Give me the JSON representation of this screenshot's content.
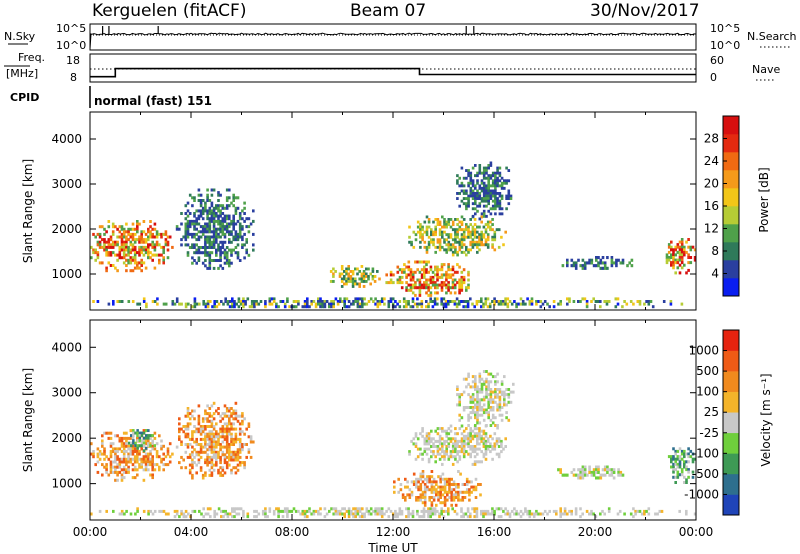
{
  "header": {
    "station": "Kerguelen (fitACF)",
    "beam": "Beam 07",
    "date": "30/Nov/2017"
  },
  "noise_panel": {
    "left_label": "N.Sky",
    "right_label": "N.Search",
    "left_ticks": [
      "10^5",
      "10^0"
    ],
    "right_ticks": [
      "10^5",
      "10^0"
    ],
    "spikes_hours": [
      0.5,
      0.75,
      2.7,
      14.9,
      15.2
    ],
    "line_style_right": "dotted"
  },
  "freq_panel": {
    "left_label": "Freq.",
    "left_unit": "[MHz]",
    "right_label": "Nave",
    "left_ticks": [
      "18",
      "8"
    ],
    "right_ticks": [
      "60",
      "0"
    ],
    "freq_series": {
      "x_hours": [
        0,
        1,
        1,
        13.05,
        13.05,
        24
      ],
      "mhz": [
        9.5,
        9.5,
        13.2,
        13.2,
        10.5,
        10.5
      ]
    },
    "nave_dotted_level": 30,
    "line_style_right": "dotted"
  },
  "cpid": {
    "label": "CPID",
    "program": "normal (fast) 151"
  },
  "chart_data": [
    {
      "type": "heatmap",
      "ylabel": "Slant Range [km]",
      "xlabel": "",
      "ylim": [
        200,
        4600
      ],
      "xlim_hours": [
        0,
        24
      ],
      "y_ticks": [
        "1000",
        "2000",
        "3000",
        "4000"
      ],
      "x_ticks": [
        "00:00",
        "04:00",
        "08:00",
        "12:00",
        "16:00",
        "20:00",
        "00:00"
      ],
      "colorbar": {
        "label": "Power [dB]",
        "ticks": [
          "4",
          "8",
          "12",
          "16",
          "20",
          "24",
          "28"
        ],
        "colors": [
          "#0a1ef0",
          "#2a3f9f",
          "#2f7a5a",
          "#4fa14a",
          "#b6cc35",
          "#f2c618",
          "#f59a1a",
          "#f06a12",
          "#e42a10",
          "#d70f0f"
        ]
      },
      "regions": [
        {
          "h0": 0.0,
          "h1": 3.3,
          "r0": 1050,
          "r1": 2200,
          "level": "high"
        },
        {
          "h0": 3.4,
          "h1": 6.5,
          "r0": 1100,
          "r1": 2900,
          "level": "low"
        },
        {
          "h0": 9.5,
          "h1": 11.5,
          "r0": 700,
          "r1": 1200,
          "level": "mid"
        },
        {
          "h0": 11.7,
          "h1": 15.2,
          "r0": 500,
          "r1": 1300,
          "level": "high"
        },
        {
          "h0": 12.6,
          "h1": 16.5,
          "r0": 1400,
          "r1": 2300,
          "level": "mid"
        },
        {
          "h0": 14.5,
          "h1": 16.8,
          "r0": 2200,
          "r1": 3500,
          "level": "low"
        },
        {
          "h0": 18.5,
          "h1": 21.5,
          "r0": 1100,
          "r1": 1400,
          "level": "low"
        },
        {
          "h0": 22.8,
          "h1": 24.0,
          "r0": 1000,
          "r1": 1800,
          "level": "high"
        },
        {
          "h0": 0.0,
          "h1": 24.0,
          "r0": 250,
          "r1": 480,
          "level": "ground"
        }
      ]
    },
    {
      "type": "heatmap",
      "ylabel": "Slant Range [km]",
      "xlabel": "Time UT",
      "ylim": [
        200,
        4600
      ],
      "xlim_hours": [
        0,
        24
      ],
      "y_ticks": [
        "1000",
        "2000",
        "3000",
        "4000"
      ],
      "x_ticks": [
        "00:00",
        "04:00",
        "08:00",
        "12:00",
        "16:00",
        "20:00",
        "00:00"
      ],
      "colorbar": {
        "label": "Velocity [m s⁻¹]",
        "ticks": [
          "1000",
          "500",
          "100",
          "25",
          "-25",
          "-100",
          "-500",
          "-1000"
        ],
        "colors": [
          "#1f44b8",
          "#2e6f8e",
          "#3e9a55",
          "#6fcf3c",
          "#c8c8c8",
          "#f4b42a",
          "#f08a1e",
          "#ef5b16",
          "#e6230f"
        ]
      },
      "regions": [
        {
          "h0": 0.0,
          "h1": 3.3,
          "r0": 1050,
          "r1": 2200,
          "level": "neg"
        },
        {
          "h0": 1.5,
          "h1": 2.6,
          "r0": 1700,
          "r1": 2200,
          "level": "pos"
        },
        {
          "h0": 3.4,
          "h1": 6.5,
          "r0": 1100,
          "r1": 2800,
          "level": "neg"
        },
        {
          "h0": 12.0,
          "h1": 15.5,
          "r0": 500,
          "r1": 1300,
          "level": "mix"
        },
        {
          "h0": 12.6,
          "h1": 16.5,
          "r0": 1400,
          "r1": 2300,
          "level": "zero"
        },
        {
          "h0": 14.5,
          "h1": 16.8,
          "r0": 2200,
          "r1": 3500,
          "level": "zero"
        },
        {
          "h0": 18.5,
          "h1": 21.5,
          "r0": 1100,
          "r1": 1400,
          "level": "zero"
        },
        {
          "h0": 22.8,
          "h1": 24.0,
          "r0": 1000,
          "r1": 1800,
          "level": "pos"
        },
        {
          "h0": 0.0,
          "h1": 24.0,
          "r0": 250,
          "r1": 480,
          "level": "ground"
        }
      ]
    }
  ]
}
